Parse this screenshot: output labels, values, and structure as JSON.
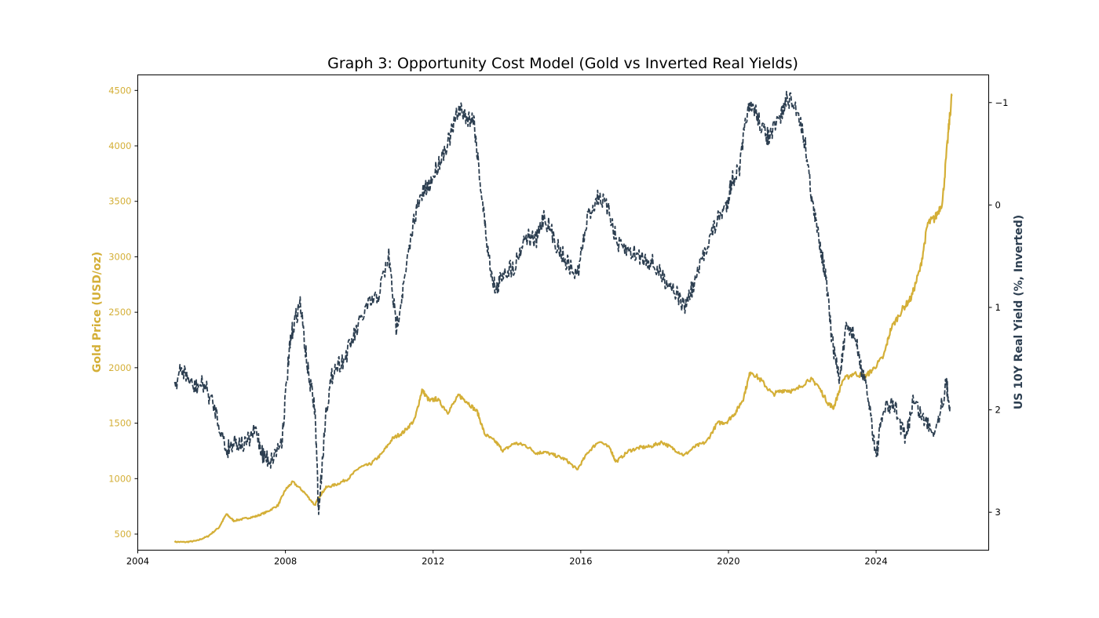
{
  "chart_data": {
    "type": "line",
    "title": "Graph 3: Opportunity Cost Model (Gold vs Inverted Real Yields)",
    "xlabel": "",
    "ylabel_left": "Gold Price (USD/oz)",
    "ylabel_right": "US 10Y Real Yield (%, Inverted)",
    "xlim": [
      2004.0,
      2027.05
    ],
    "ylim_left": [
      355,
      4640
    ],
    "ylim_right_inverted": [
      3.37,
      -1.27
    ],
    "grid": false,
    "legend": "none",
    "x_ticks": [
      "2004",
      "2008",
      "2012",
      "2016",
      "2020",
      "2024"
    ],
    "x_tick_values": [
      2004,
      2008,
      2012,
      2016,
      2020,
      2024
    ],
    "y_left_ticks": [
      "500",
      "1000",
      "1500",
      "2000",
      "2500",
      "3000",
      "3500",
      "4000",
      "4500"
    ],
    "y_left_tick_values": [
      500,
      1000,
      1500,
      2000,
      2500,
      3000,
      3500,
      4000,
      4500
    ],
    "y_right_ticks": [
      "−1",
      "0",
      "1",
      "2",
      "3"
    ],
    "y_right_tick_values": [
      -1,
      0,
      1,
      2,
      3
    ],
    "colors": {
      "gold": "#d4af37",
      "yield": "#2c3e50",
      "axis_text": "#222222"
    },
    "series": [
      {
        "name": "Gold Price",
        "axis": "left",
        "style": "solid",
        "x": [
          2005.0,
          2005.3,
          2005.6,
          2005.9,
          2006.2,
          2006.4,
          2006.6,
          2006.9,
          2007.2,
          2007.5,
          2007.8,
          2008.0,
          2008.2,
          2008.5,
          2008.8,
          2008.9,
          2009.1,
          2009.4,
          2009.7,
          2010.0,
          2010.3,
          2010.6,
          2010.9,
          2011.2,
          2011.5,
          2011.7,
          2011.9,
          2012.1,
          2012.4,
          2012.7,
          2012.9,
          2013.2,
          2013.4,
          2013.7,
          2013.9,
          2014.2,
          2014.5,
          2014.8,
          2015.0,
          2015.3,
          2015.6,
          2015.9,
          2016.2,
          2016.5,
          2016.8,
          2016.95,
          2017.3,
          2017.6,
          2017.9,
          2018.2,
          2018.5,
          2018.8,
          2019.1,
          2019.4,
          2019.7,
          2019.95,
          2020.2,
          2020.4,
          2020.6,
          2020.9,
          2021.2,
          2021.5,
          2021.8,
          2022.2,
          2022.4,
          2022.7,
          2022.85,
          2023.1,
          2023.4,
          2023.7,
          2023.9,
          2024.2,
          2024.4,
          2024.7,
          2024.95,
          2025.2,
          2025.4,
          2025.6,
          2025.8,
          2025.95,
          2026.05
        ],
        "values": [
          430,
          428,
          440,
          480,
          560,
          680,
          620,
          640,
          660,
          700,
          760,
          900,
          970,
          880,
          760,
          830,
          920,
          950,
          1000,
          1100,
          1130,
          1220,
          1360,
          1420,
          1530,
          1800,
          1700,
          1720,
          1600,
          1750,
          1700,
          1600,
          1400,
          1330,
          1250,
          1320,
          1300,
          1230,
          1240,
          1210,
          1170,
          1080,
          1240,
          1340,
          1270,
          1150,
          1250,
          1280,
          1290,
          1330,
          1270,
          1210,
          1290,
          1330,
          1500,
          1510,
          1600,
          1720,
          1970,
          1880,
          1760,
          1800,
          1790,
          1900,
          1850,
          1680,
          1640,
          1890,
          1950,
          1920,
          1980,
          2100,
          2350,
          2520,
          2630,
          2900,
          3300,
          3350,
          3500,
          4100,
          4450
        ]
      },
      {
        "name": "US 10Y Real Yield (Inverted)",
        "axis": "right",
        "style": "dashed",
        "x": [
          2005.0,
          2005.2,
          2005.5,
          2005.8,
          2006.1,
          2006.4,
          2006.6,
          2006.9,
          2007.2,
          2007.4,
          2007.6,
          2007.9,
          2008.1,
          2008.2,
          2008.4,
          2008.6,
          2008.8,
          2008.9,
          2009.1,
          2009.3,
          2009.6,
          2009.9,
          2010.2,
          2010.5,
          2010.8,
          2011.0,
          2011.2,
          2011.5,
          2011.7,
          2011.9,
          2012.2,
          2012.5,
          2012.7,
          2012.9,
          2013.1,
          2013.3,
          2013.5,
          2013.7,
          2013.9,
          2014.2,
          2014.5,
          2014.8,
          2015.0,
          2015.3,
          2015.6,
          2015.9,
          2016.2,
          2016.5,
          2016.8,
          2017.0,
          2017.3,
          2017.6,
          2017.9,
          2018.2,
          2018.5,
          2018.8,
          2019.1,
          2019.4,
          2019.7,
          2019.95,
          2020.1,
          2020.3,
          2020.5,
          2020.7,
          2020.9,
          2021.1,
          2021.4,
          2021.6,
          2021.9,
          2022.1,
          2022.3,
          2022.5,
          2022.65,
          2022.8,
          2023.0,
          2023.2,
          2023.4,
          2023.6,
          2023.8,
          2024.0,
          2024.2,
          2024.5,
          2024.8,
          2025.0,
          2025.3,
          2025.6,
          2025.9,
          2026.0
        ],
        "values": [
          1.75,
          1.6,
          1.78,
          1.75,
          2.0,
          2.4,
          2.3,
          2.35,
          2.2,
          2.45,
          2.5,
          2.3,
          1.45,
          1.2,
          0.95,
          1.6,
          2.0,
          3.0,
          2.0,
          1.6,
          1.5,
          1.25,
          1.0,
          0.9,
          0.5,
          1.2,
          0.8,
          0.1,
          -0.1,
          -0.2,
          -0.45,
          -0.7,
          -0.95,
          -0.85,
          -0.85,
          -0.15,
          0.5,
          0.85,
          0.65,
          0.6,
          0.3,
          0.35,
          0.1,
          0.35,
          0.55,
          0.7,
          0.1,
          -0.1,
          0.1,
          0.4,
          0.45,
          0.5,
          0.55,
          0.7,
          0.8,
          1.0,
          0.75,
          0.4,
          0.15,
          0.0,
          -0.25,
          -0.35,
          -0.9,
          -0.95,
          -0.75,
          -0.65,
          -0.85,
          -1.05,
          -0.9,
          -0.55,
          0.05,
          0.4,
          0.75,
          1.3,
          1.7,
          1.2,
          1.25,
          1.6,
          1.9,
          2.45,
          2.0,
          1.95,
          2.3,
          1.9,
          2.1,
          2.2,
          1.75,
          1.95
        ]
      }
    ]
  }
}
